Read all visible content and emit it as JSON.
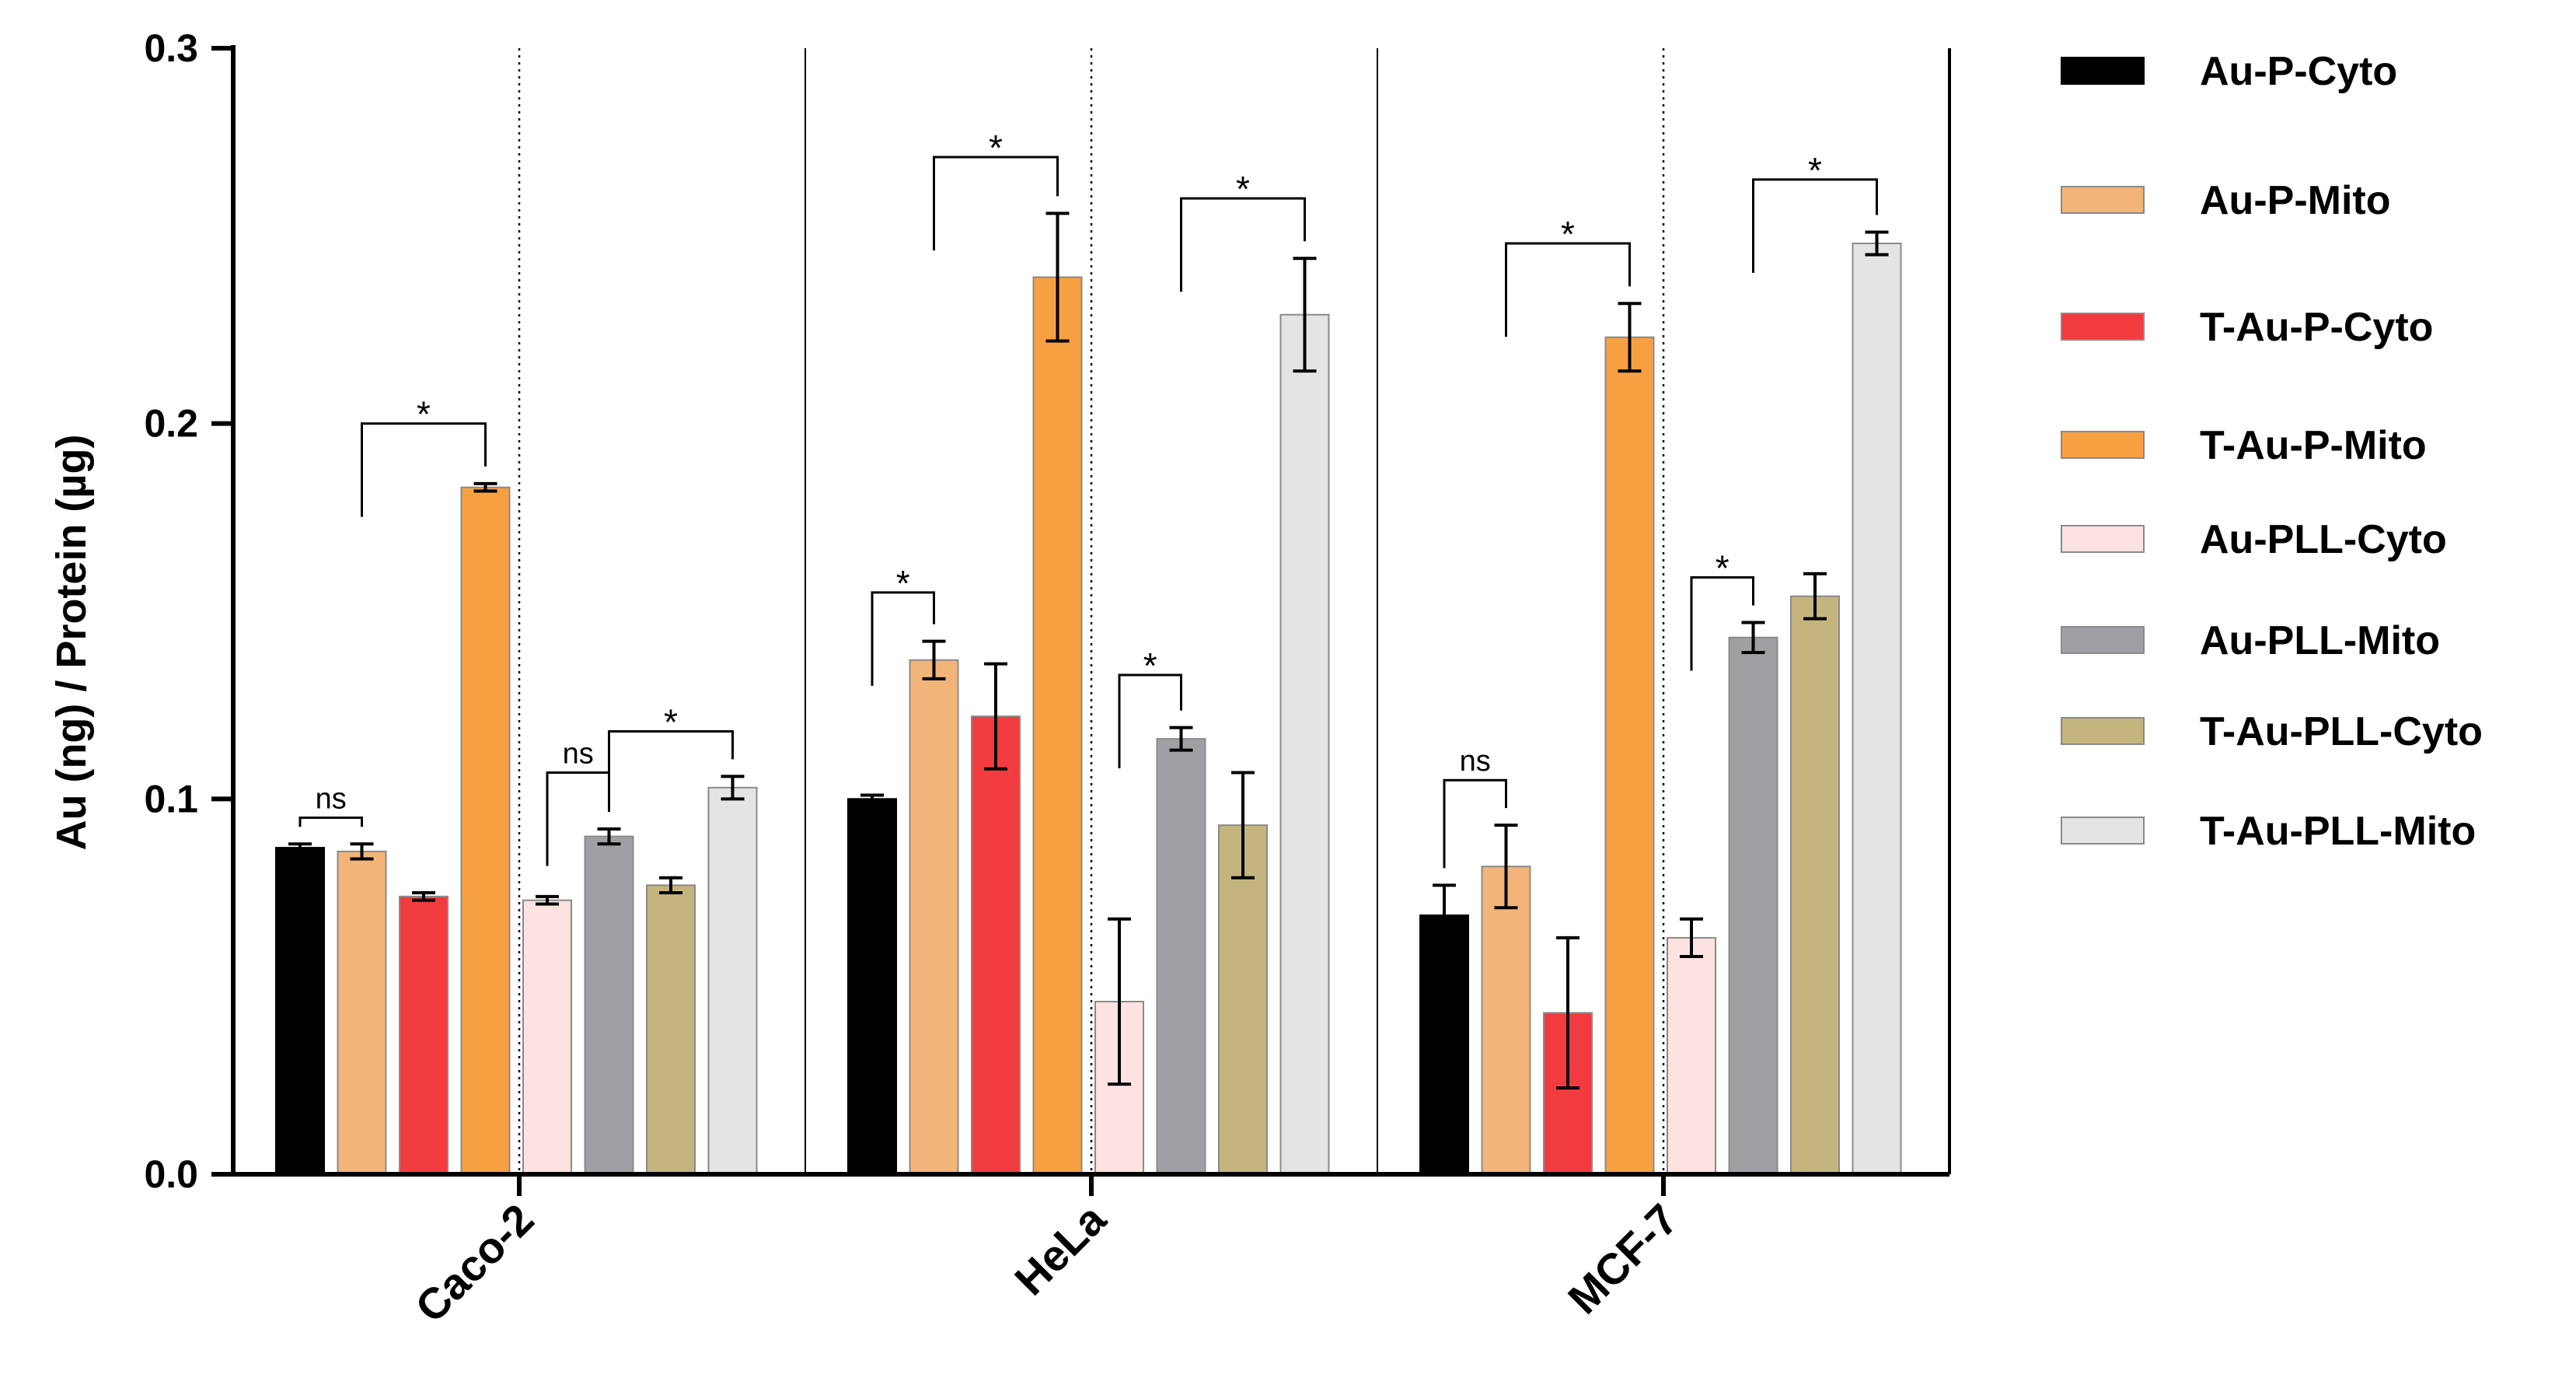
{
  "chart_data": {
    "type": "bar",
    "title": "",
    "xlabel": "",
    "ylabel": "Au (ng) / Protein (µg)",
    "ylim": [
      0,
      0.3
    ],
    "yticks": [
      "0.0",
      "0.1",
      "0.2",
      "0.3"
    ],
    "categories": [
      "Caco-2",
      "HeLa",
      "MCF-7"
    ],
    "legend_position": "right",
    "series": [
      {
        "name": "Au-P-Cyto",
        "color": "#000000",
        "values": [
          0.087,
          0.1,
          0.069
        ],
        "errors": [
          0.001,
          0.001,
          0.008
        ]
      },
      {
        "name": "Au-P-Mito",
        "color": "#F2B478",
        "values": [
          0.086,
          0.137,
          0.082
        ],
        "errors": [
          0.002,
          0.005,
          0.011
        ]
      },
      {
        "name": "T-Au-P-Cyto",
        "color": "#F23B3F",
        "values": [
          0.074,
          0.122,
          0.043
        ],
        "errors": [
          0.001,
          0.014,
          0.02
        ]
      },
      {
        "name": "T-Au-P-Mito",
        "color": "#F7A042",
        "values": [
          0.183,
          0.239,
          0.223
        ],
        "errors": [
          0.001,
          0.017,
          0.009
        ]
      },
      {
        "name": "Au-PLL-Cyto",
        "color": "#FDE2E2",
        "values": [
          0.073,
          0.046,
          0.063
        ],
        "errors": [
          0.001,
          0.022,
          0.005
        ]
      },
      {
        "name": "Au-PLL-Mito",
        "color": "#A0A0A4",
        "values": [
          0.09,
          0.116,
          0.143
        ],
        "errors": [
          0.002,
          0.003,
          0.004
        ]
      },
      {
        "name": "T-Au-PLL-Cyto",
        "color": "#C4B47E",
        "values": [
          0.077,
          0.093,
          0.154
        ],
        "errors": [
          0.002,
          0.014,
          0.006
        ]
      },
      {
        "name": "T-Au-PLL-Mito",
        "color": "#E4E4E4",
        "values": [
          0.103,
          0.229,
          0.248
        ],
        "errors": [
          0.003,
          0.015,
          0.003
        ]
      }
    ],
    "significance": [
      {
        "category": "Caco-2",
        "from": 0,
        "to": 1,
        "label": "ns",
        "y": 0.095
      },
      {
        "category": "Caco-2",
        "from": 1,
        "to": 3,
        "label": "*",
        "y": 0.2
      },
      {
        "category": "Caco-2",
        "from": 4,
        "to": 5,
        "label": "ns",
        "y": 0.107
      },
      {
        "category": "Caco-2",
        "from": 5,
        "to": 7,
        "label": "*",
        "y": 0.118
      },
      {
        "category": "HeLa",
        "from": 0,
        "to": 1,
        "label": "*",
        "y": 0.155
      },
      {
        "category": "HeLa",
        "from": 1,
        "to": 3,
        "label": "*",
        "y": 0.271
      },
      {
        "category": "HeLa",
        "from": 4,
        "to": 5,
        "label": "*",
        "y": 0.133
      },
      {
        "category": "HeLa",
        "from": 5,
        "to": 7,
        "label": "*",
        "y": 0.26
      },
      {
        "category": "MCF-7",
        "from": 0,
        "to": 1,
        "label": "ns",
        "y": 0.105
      },
      {
        "category": "MCF-7",
        "from": 1,
        "to": 3,
        "label": "*",
        "y": 0.248
      },
      {
        "category": "MCF-7",
        "from": 4,
        "to": 5,
        "label": "*",
        "y": 0.159
      },
      {
        "category": "MCF-7",
        "from": 5,
        "to": 7,
        "label": "*",
        "y": 0.265
      }
    ]
  }
}
